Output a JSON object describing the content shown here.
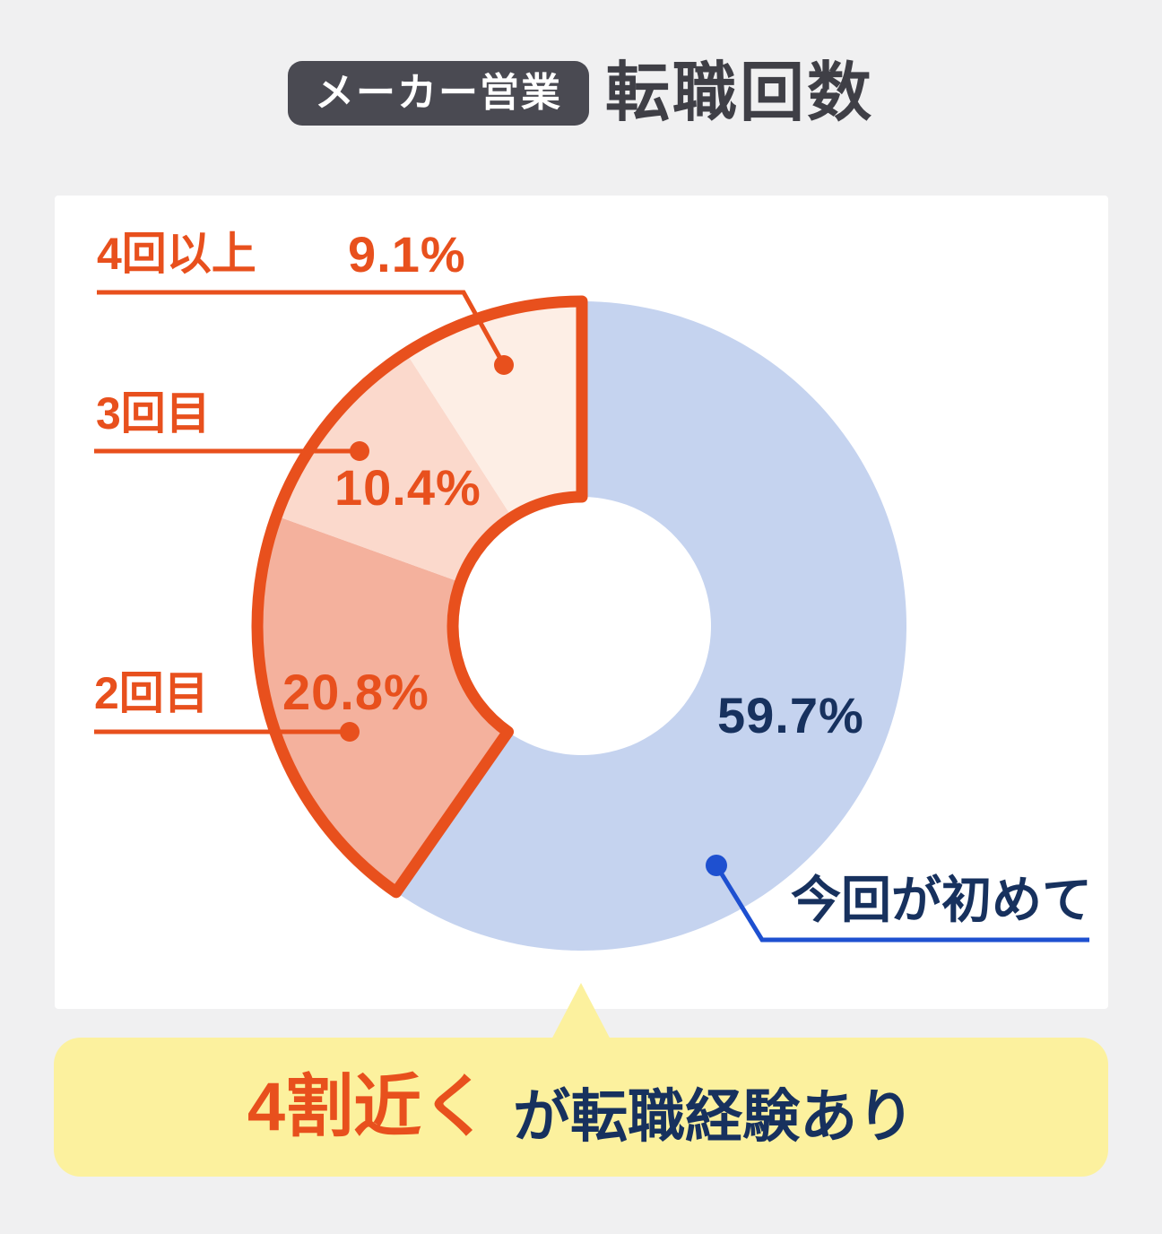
{
  "page": {
    "background": "#f0f0f1",
    "card_background": "#ffffff"
  },
  "header": {
    "badge": "メーカー営業",
    "title": "転職回数"
  },
  "chart_data": {
    "type": "pie",
    "subtype": "donut",
    "title": "メーカー営業 転職回数",
    "start": "top",
    "direction": "clockwise",
    "total": 100,
    "segments": [
      {
        "label": "今回が初めて",
        "value": 59.7,
        "display": "59.7%",
        "color": "#c5d3ef"
      },
      {
        "label": "2回目",
        "value": 20.8,
        "display": "20.8%",
        "color": "#f4b19d"
      },
      {
        "label": "3回目",
        "value": 10.4,
        "display": "10.4%",
        "color": "#fbd9cc"
      },
      {
        "label": "4回以上",
        "value": 9.1,
        "display": "9.1%",
        "color": "#fdeee5"
      }
    ],
    "highlight": {
      "segments": [
        "2回目",
        "3回目",
        "4回以上"
      ],
      "outline_color": "#e8501d",
      "note": "4割近くが転職経験あり"
    },
    "legend_position": "callout-labels"
  },
  "callout": {
    "highlight": "4割近く",
    "rest": "が転職経験あり"
  },
  "colors": {
    "accent_orange": "#e8501d",
    "navy": "#17315e",
    "leader_blue": "#1e50d0",
    "callout_bg": "#fcf19e",
    "badge_bg": "#4a4a52",
    "title_color": "#3f3f46"
  }
}
